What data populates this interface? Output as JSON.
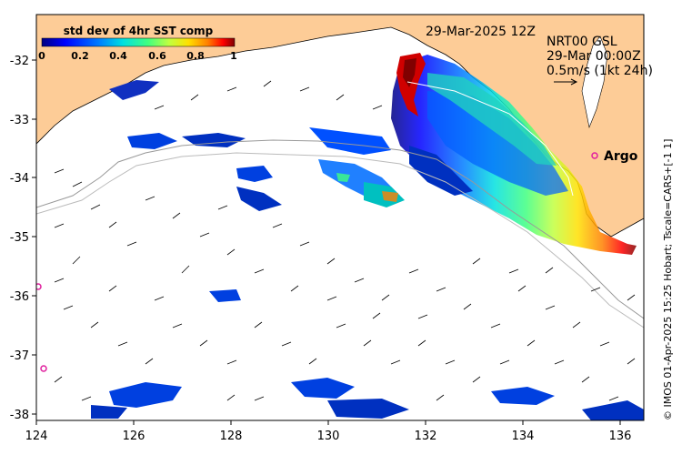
{
  "colorbar": {
    "title": "std dev of 4hr SST comp",
    "ticks": [
      "0",
      "0.2",
      "0.4",
      "0.6",
      "0.8",
      "1"
    ],
    "range": [
      0,
      1
    ]
  },
  "date_label": "29-Mar-2025 12Z",
  "currents_info": {
    "line1": "NRT00 GSL",
    "line2": "29-Mar 00:00Z",
    "line3": "0.5m/s (1kt 24h)"
  },
  "argo_label": "Argo",
  "credit": "© IMOS 01-Apr-2025 15:25 Hobart; Tscale=CARS+[-1 1]",
  "axes": {
    "x_ticks": [
      "124",
      "126",
      "128",
      "130",
      "132",
      "134",
      "136"
    ],
    "y_ticks": [
      "-32",
      "-33",
      "-34",
      "-35",
      "-36",
      "-37",
      "-38"
    ],
    "lon_range": [
      124,
      136.5
    ],
    "lat_range": [
      -38.1,
      -31.2
    ]
  },
  "colors": {
    "land": "#fdcc97",
    "ocean": "#ffffff",
    "argo_marker": "#e0209e",
    "colormap": [
      "#000080",
      "#0000ff",
      "#0080ff",
      "#00e0e0",
      "#40ff80",
      "#c0ff40",
      "#ffe000",
      "#ff8000",
      "#ff0000",
      "#800000"
    ]
  }
}
